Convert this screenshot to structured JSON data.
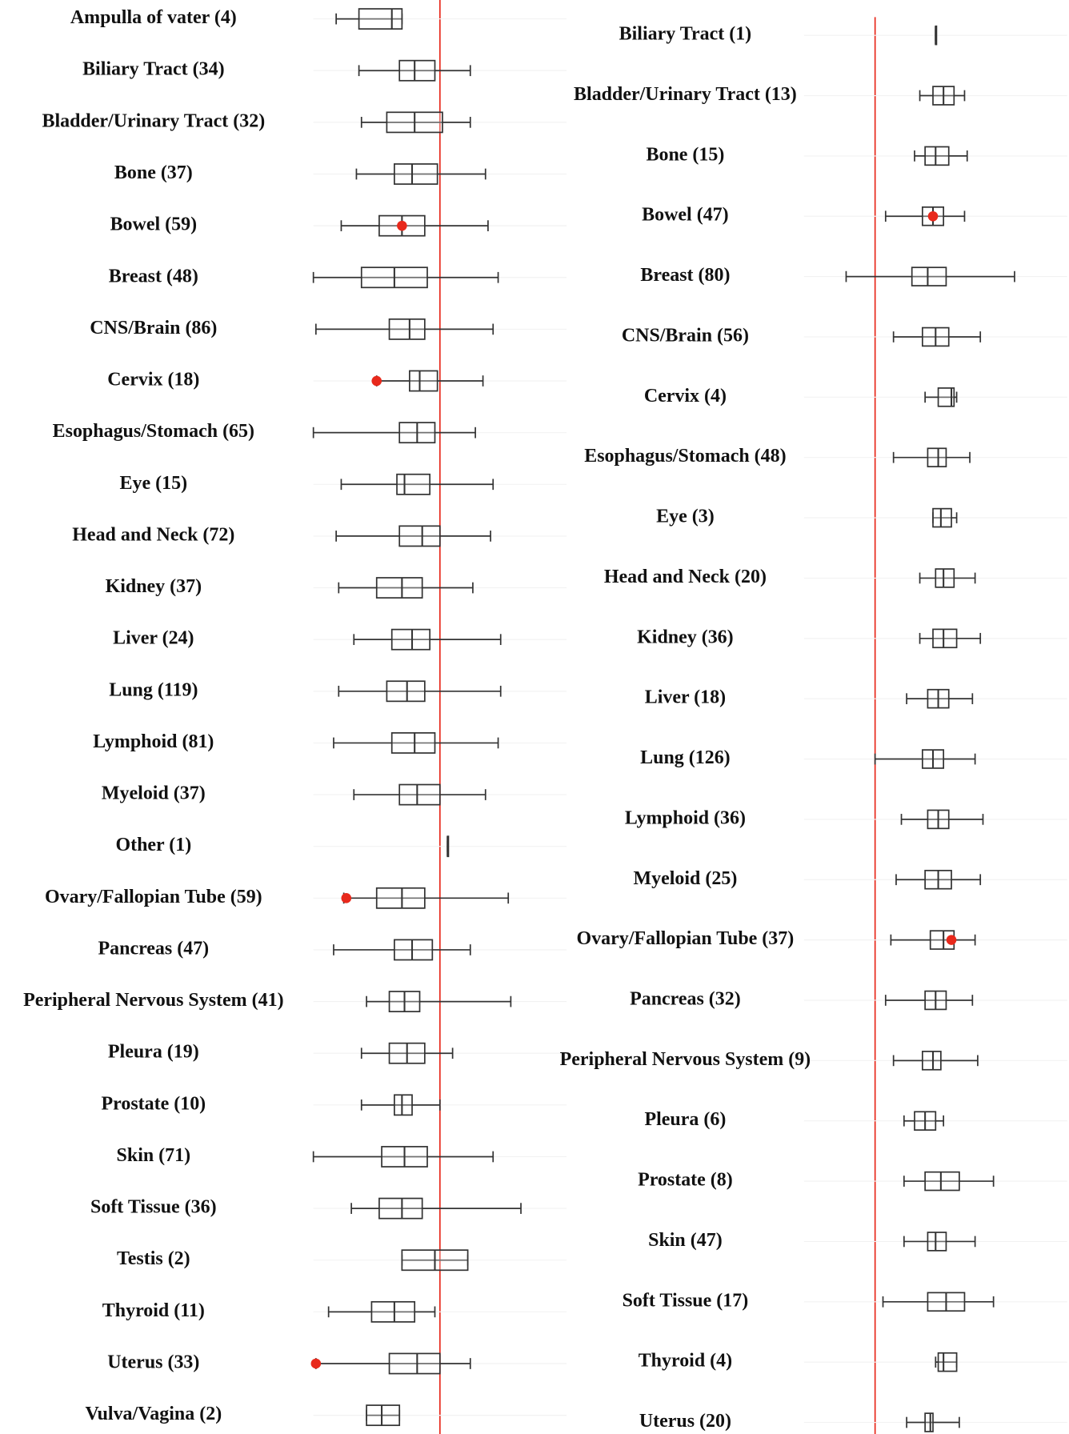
{
  "chart_data": [
    {
      "type": "box",
      "xlim": [
        0,
        100
      ],
      "reference": 50,
      "box_color": "#333333",
      "reference_color": "#e8291c",
      "highlight_color": "#e8291c",
      "boxes": [
        {
          "label": "Ampulla of vater (4)",
          "stats": [
            9,
            18,
            31,
            35,
            35
          ]
        },
        {
          "label": "Biliary Tract (34)",
          "stats": [
            18,
            34,
            40,
            48,
            62
          ]
        },
        {
          "label": "Bladder/Urinary Tract (32)",
          "stats": [
            19,
            29,
            40,
            51,
            62
          ]
        },
        {
          "label": "Bone (37)",
          "stats": [
            17,
            32,
            39,
            49,
            68
          ]
        },
        {
          "label": "Bowel (59)",
          "stats": [
            11,
            26,
            35,
            44,
            69
          ],
          "highlight": 35
        },
        {
          "label": "Breast (48)",
          "stats": [
            0,
            19,
            32,
            45,
            73
          ]
        },
        {
          "label": "CNS/Brain (86)",
          "stats": [
            1,
            30,
            38,
            44,
            71
          ]
        },
        {
          "label": "Cervix (18)",
          "stats": [
            25,
            38,
            42,
            49,
            67
          ],
          "highlight": 25
        },
        {
          "label": "Esophagus/Stomach (65)",
          "stats": [
            0,
            34,
            41,
            48,
            64
          ]
        },
        {
          "label": "Eye (15)",
          "stats": [
            11,
            33,
            36,
            46,
            71
          ]
        },
        {
          "label": "Head and Neck (72)",
          "stats": [
            9,
            34,
            43,
            50,
            70
          ]
        },
        {
          "label": "Kidney (37)",
          "stats": [
            10,
            25,
            35,
            43,
            63
          ]
        },
        {
          "label": "Liver (24)",
          "stats": [
            16,
            31,
            39,
            46,
            74
          ]
        },
        {
          "label": "Lung (119)",
          "stats": [
            10,
            29,
            37,
            44,
            74
          ]
        },
        {
          "label": "Lymphoid (81)",
          "stats": [
            8,
            31,
            40,
            48,
            73
          ]
        },
        {
          "label": "Myeloid (37)",
          "stats": [
            16,
            34,
            41,
            50,
            68
          ]
        },
        {
          "label": "Other (1)",
          "stats": [
            53,
            53,
            53,
            53,
            53
          ]
        },
        {
          "label": "Ovary/Fallopian Tube (59)",
          "stats": [
            12,
            25,
            35,
            44,
            77
          ],
          "highlight": 13
        },
        {
          "label": "Pancreas (47)",
          "stats": [
            8,
            32,
            39,
            47,
            62
          ]
        },
        {
          "label": "Peripheral Nervous System (41)",
          "stats": [
            21,
            30,
            36,
            42,
            78
          ]
        },
        {
          "label": "Pleura (19)",
          "stats": [
            19,
            30,
            37,
            44,
            55
          ]
        },
        {
          "label": "Prostate (10)",
          "stats": [
            19,
            32,
            35,
            39,
            50
          ]
        },
        {
          "label": "Skin (71)",
          "stats": [
            0,
            27,
            36,
            45,
            71
          ]
        },
        {
          "label": "Soft Tissue (36)",
          "stats": [
            15,
            26,
            35,
            43,
            82
          ]
        },
        {
          "label": "Testis (2)",
          "stats": [
            35,
            35,
            48,
            61,
            61
          ]
        },
        {
          "label": "Thyroid (11)",
          "stats": [
            6,
            23,
            32,
            40,
            48
          ]
        },
        {
          "label": "Uterus (33)",
          "stats": [
            1,
            30,
            41,
            50,
            62
          ],
          "highlight": 1
        },
        {
          "label": "Vulva/Vagina (2)",
          "stats": [
            21,
            21,
            27,
            34,
            34
          ]
        }
      ]
    },
    {
      "type": "box",
      "xlim": [
        0,
        100
      ],
      "reference": 27,
      "box_color": "#333333",
      "reference_color": "#e8291c",
      "highlight_color": "#e8291c",
      "boxes": [
        {
          "label": "Biliary Tract (1)",
          "stats": [
            50,
            50,
            50,
            50,
            50
          ]
        },
        {
          "label": "Bladder/Urinary Tract (13)",
          "stats": [
            44,
            49,
            53,
            57,
            61
          ]
        },
        {
          "label": "Bone (15)",
          "stats": [
            42,
            46,
            50,
            55,
            62
          ]
        },
        {
          "label": "Bowel (47)",
          "stats": [
            31,
            45,
            49,
            53,
            61
          ],
          "highlight": 49
        },
        {
          "label": "Breast (80)",
          "stats": [
            16,
            41,
            47,
            54,
            80
          ]
        },
        {
          "label": "CNS/Brain (56)",
          "stats": [
            34,
            45,
            50,
            55,
            67
          ]
        },
        {
          "label": "Cervix (4)",
          "stats": [
            46,
            51,
            56,
            57,
            58
          ]
        },
        {
          "label": "Esophagus/Stomach (48)",
          "stats": [
            34,
            47,
            51,
            54,
            63
          ]
        },
        {
          "label": "Eye (3)",
          "stats": [
            49,
            49,
            52,
            56,
            58
          ]
        },
        {
          "label": "Head and Neck (20)",
          "stats": [
            44,
            50,
            53,
            57,
            65
          ]
        },
        {
          "label": "Kidney (36)",
          "stats": [
            44,
            49,
            53,
            58,
            67
          ]
        },
        {
          "label": "Liver (18)",
          "stats": [
            39,
            47,
            51,
            55,
            64
          ]
        },
        {
          "label": "Lung (126)",
          "stats": [
            27,
            45,
            49,
            53,
            65
          ]
        },
        {
          "label": "Lymphoid (36)",
          "stats": [
            37,
            47,
            51,
            55,
            68
          ]
        },
        {
          "label": "Myeloid (25)",
          "stats": [
            35,
            46,
            51,
            56,
            67
          ]
        },
        {
          "label": "Ovary/Fallopian Tube (37)",
          "stats": [
            33,
            48,
            53,
            57,
            65
          ],
          "highlight": 56
        },
        {
          "label": "Pancreas (32)",
          "stats": [
            31,
            46,
            50,
            54,
            64
          ]
        },
        {
          "label": "Peripheral Nervous System (9)",
          "stats": [
            34,
            45,
            49,
            52,
            66
          ]
        },
        {
          "label": "Pleura (6)",
          "stats": [
            38,
            42,
            46,
            50,
            53
          ]
        },
        {
          "label": "Prostate (8)",
          "stats": [
            38,
            46,
            52,
            59,
            72
          ]
        },
        {
          "label": "Skin (47)",
          "stats": [
            38,
            47,
            50,
            54,
            65
          ]
        },
        {
          "label": "Soft Tissue (17)",
          "stats": [
            30,
            47,
            54,
            61,
            72
          ]
        },
        {
          "label": "Thyroid (4)",
          "stats": [
            50,
            51,
            53,
            58,
            58
          ]
        },
        {
          "label": "Uterus (20)",
          "stats": [
            39,
            46,
            48,
            49,
            59
          ]
        }
      ]
    }
  ]
}
